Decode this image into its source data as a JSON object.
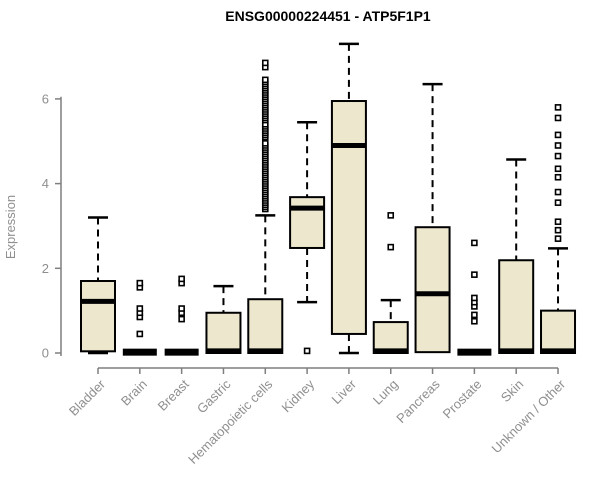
{
  "title": "ENSG00000224451 - ATP5F1P1",
  "style": {
    "background": "#ffffff",
    "box_fill": "#ede8cd",
    "box_stroke": "#000000",
    "median_color": "#000000",
    "whisker_color": "#000000",
    "outlier_fill": "#ffffff",
    "outlier_stroke": "#000000",
    "axis_color": "#7f7f7f",
    "label_color": "#8f8f8f",
    "title_color": "#000000"
  },
  "chart_data": {
    "type": "boxplot",
    "title": "ENSG00000224451 - ATP5F1P1",
    "xlabel": "",
    "ylabel": "Expression",
    "ylim": [
      0,
      7.4
    ],
    "yticks": [
      0,
      2,
      4,
      6
    ],
    "grid": false,
    "legend": "none",
    "categories": [
      "Bladder",
      "Brain",
      "Breast",
      "Gastric",
      "Hematopoietic cells",
      "Kidney",
      "Liver",
      "Lung",
      "Pancreas",
      "Prostate",
      "Skin",
      "Unknown / Other"
    ],
    "series": [
      {
        "name": "Bladder",
        "whisker_low": 0,
        "q1": 0.04,
        "median": 1.22,
        "q3": 1.7,
        "whisker_high": 3.2,
        "outliers": []
      },
      {
        "name": "Brain",
        "whisker_low": 0,
        "q1": 0,
        "median": 0.02,
        "q3": 0.05,
        "whisker_high": 0.05,
        "outliers": [
          0.45,
          0.85,
          0.95,
          1.05,
          1.55,
          1.65
        ]
      },
      {
        "name": "Breast",
        "whisker_low": 0,
        "q1": 0,
        "median": 0.02,
        "q3": 0.05,
        "whisker_high": 0.05,
        "outliers": [
          0.8,
          0.95,
          1.05,
          1.65,
          1.75
        ]
      },
      {
        "name": "Gastric",
        "whisker_low": 0,
        "q1": 0,
        "median": 0.05,
        "q3": 0.95,
        "whisker_high": 1.58,
        "outliers": []
      },
      {
        "name": "Hematopoietic cells",
        "whisker_low": 0,
        "q1": 0,
        "median": 0.05,
        "q3": 1.27,
        "whisker_high": 3.25,
        "outliers": [
          3.4,
          3.45,
          3.5,
          3.55,
          3.6,
          3.65,
          3.7,
          3.75,
          3.8,
          3.85,
          3.9,
          3.95,
          4.0,
          4.05,
          4.1,
          4.15,
          4.2,
          4.25,
          4.3,
          4.35,
          4.4,
          4.45,
          4.5,
          4.55,
          4.6,
          4.65,
          4.7,
          4.75,
          4.8,
          4.85,
          4.9,
          4.95,
          5.1,
          5.15,
          5.2,
          5.25,
          5.3,
          5.35,
          5.4,
          5.5,
          5.55,
          5.6,
          5.65,
          5.7,
          5.75,
          5.8,
          5.85,
          5.9,
          5.95,
          6.0,
          6.05,
          6.1,
          6.15,
          6.2,
          6.25,
          6.3,
          6.35,
          6.4,
          6.45,
          6.75,
          6.85
        ]
      },
      {
        "name": "Kidney",
        "whisker_low": 1.2,
        "q1": 2.48,
        "median": 3.42,
        "q3": 3.68,
        "whisker_high": 5.45,
        "outliers": [
          0.05
        ]
      },
      {
        "name": "Liver",
        "whisker_low": 0,
        "q1": 0.45,
        "median": 4.9,
        "q3": 5.95,
        "whisker_high": 7.3,
        "outliers": []
      },
      {
        "name": "Lung",
        "whisker_low": 0,
        "q1": 0,
        "median": 0.05,
        "q3": 0.73,
        "whisker_high": 1.25,
        "outliers": [
          2.5,
          3.25
        ]
      },
      {
        "name": "Pancreas",
        "whisker_low": 0.02,
        "q1": 0.02,
        "median": 1.4,
        "q3": 2.97,
        "whisker_high": 6.35,
        "outliers": []
      },
      {
        "name": "Prostate",
        "whisker_low": 0,
        "q1": 0,
        "median": 0.02,
        "q3": 0.05,
        "whisker_high": 0.05,
        "outliers": [
          0.75,
          0.9,
          1.1,
          1.2,
          1.3,
          1.85,
          2.6
        ]
      },
      {
        "name": "Skin",
        "whisker_low": 0,
        "q1": 0,
        "median": 0.05,
        "q3": 2.19,
        "whisker_high": 4.57,
        "outliers": []
      },
      {
        "name": "Unknown / Other",
        "whisker_low": 0,
        "q1": 0,
        "median": 0.05,
        "q3": 1.0,
        "whisker_high": 2.47,
        "outliers": [
          2.7,
          2.9,
          3.1,
          3.55,
          3.8,
          4.15,
          4.35,
          4.65,
          4.9,
          5.15,
          5.55,
          5.8
        ]
      }
    ]
  }
}
